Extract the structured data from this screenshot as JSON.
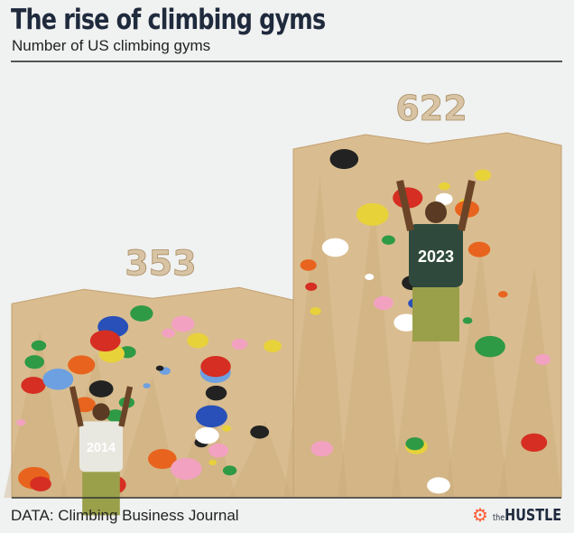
{
  "header": {
    "title": "The rise of climbing gyms",
    "subtitle": "Number of US climbing gyms"
  },
  "footer": {
    "source": "DATA: Climbing Business Journal",
    "logo_prefix": "the",
    "logo": "HUSTLE",
    "logo_icon": "hubspot-sprocket-icon"
  },
  "chart_data": {
    "type": "bar",
    "title": "The rise of climbing gyms",
    "subtitle": "Number of US climbing gyms",
    "categories": [
      "2014",
      "2023"
    ],
    "values": [
      353,
      622
    ],
    "data_labels": [
      "353",
      "622"
    ],
    "ylim": [
      0,
      622
    ],
    "grid": false,
    "colors": {
      "wall": "#d9bd90",
      "wall_dark": "#c9a676",
      "label": "#d8c4a4",
      "shirt": "#2f4a3c"
    }
  }
}
